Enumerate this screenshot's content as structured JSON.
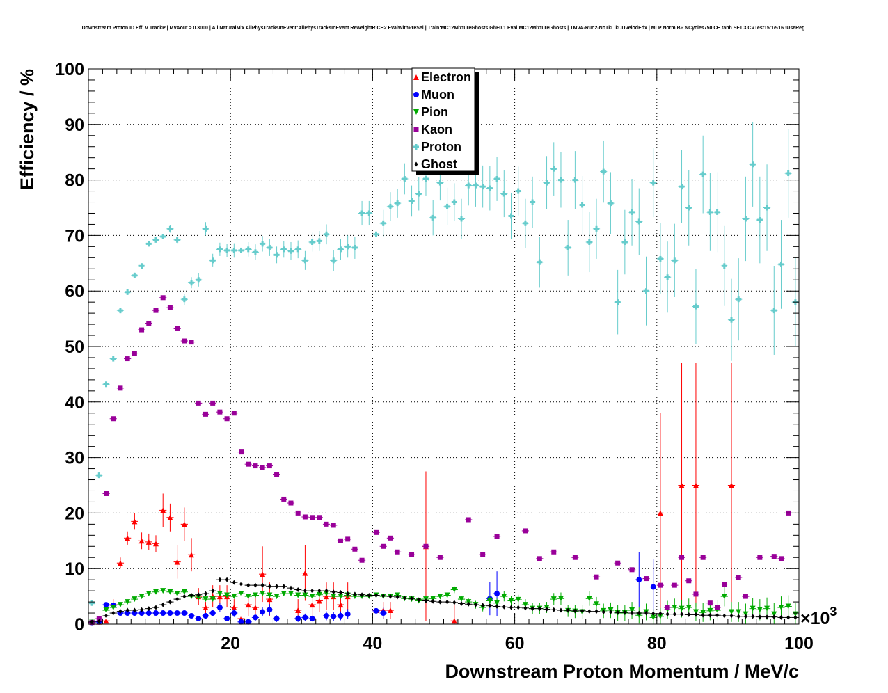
{
  "chart_data": {
    "type": "scatter",
    "title": "Downstream Proton ID Eff. V TrackP | MVAout > 0.3000 | All NaturalMix AllPhysTracksInEvent:AllPhysTracksInEvent ReweightRICH2 EvalWithPreSel | Train:MC12MixtureGhosts GhF0.1 Eval:MC12MixtureGhosts | TMVA-Run2-NoTkLikCDVelodEdx | MLP Norm BP NCycles750 CE tanh SF1.3 CVTest15:1e-16 !UseReg",
    "xlabel": "Downstream Proton Momentum / MeV/c",
    "ylabel": "Efficiency / %",
    "x_exponent_label": "×10",
    "x_exponent_power": "3",
    "xlim": [
      0,
      100
    ],
    "ylim": [
      0,
      100
    ],
    "x_ticks": [
      "20",
      "40",
      "60",
      "80",
      "100"
    ],
    "y_ticks": [
      "0",
      "10",
      "20",
      "30",
      "40",
      "50",
      "60",
      "70",
      "80",
      "90",
      "100"
    ],
    "grid": true,
    "legend_position": "top-center",
    "series": [
      {
        "name": "Electron",
        "color": "#ff0000",
        "marker": "triangle-up",
        "x": [
          2,
          3,
          4,
          5,
          6,
          7,
          8,
          9,
          10,
          11,
          12,
          13,
          14,
          15,
          16,
          17,
          18,
          19,
          20,
          21,
          22,
          23,
          24,
          25,
          26,
          30,
          31,
          32,
          33,
          34,
          35,
          36,
          37,
          41,
          42,
          43,
          48,
          52,
          81,
          84,
          86,
          91
        ],
        "y": [
          0.4,
          0.6,
          3.5,
          11,
          15.5,
          18.5,
          15,
          14.8,
          14.5,
          20.5,
          19.2,
          11.2,
          18,
          12.5,
          5,
          3,
          5,
          5,
          5,
          3,
          1,
          3.5,
          3,
          9,
          4.5,
          2.5,
          9.2,
          3.5,
          4.2,
          5,
          5,
          3.5,
          5,
          2.5,
          2.5,
          2.5,
          14,
          0.6,
          20,
          25,
          25,
          25
        ],
        "err": [
          0.3,
          0.4,
          1,
          1,
          1.2,
          1.5,
          1.5,
          1.5,
          1.5,
          3,
          2.5,
          3,
          3,
          3,
          1.5,
          1,
          2,
          2,
          2,
          1.5,
          1,
          2,
          2,
          5,
          3,
          2,
          5,
          2,
          2,
          2.5,
          2.5,
          2,
          2.5,
          1.5,
          1.5,
          1.5,
          13.5,
          3,
          18,
          22,
          22,
          22
        ]
      },
      {
        "name": "Muon",
        "color": "#0000ff",
        "marker": "circle",
        "x": [
          1,
          2,
          3,
          4,
          5,
          6,
          7,
          8,
          9,
          10,
          11,
          12,
          13,
          14,
          15,
          16,
          17,
          18,
          19,
          20,
          21,
          22,
          23,
          24,
          25,
          26,
          27,
          30,
          31,
          32,
          34,
          35,
          36,
          37,
          41,
          42,
          57,
          58,
          78,
          80
        ],
        "y": [
          0.3,
          0.4,
          3.5,
          3.4,
          2,
          2,
          2,
          2,
          2,
          2,
          2,
          2,
          2,
          2,
          1.5,
          1,
          1.5,
          2,
          3,
          1,
          2,
          0.4,
          0.4,
          1.2,
          2.2,
          2.6,
          1,
          1,
          1.2,
          1,
          1.5,
          1.4,
          1.5,
          1.8,
          2.4,
          2,
          4.6,
          5.5,
          8,
          6.7
        ],
        "err": [
          0.2,
          0.2,
          0.5,
          0.5,
          0.4,
          0.4,
          0.4,
          0.4,
          0.4,
          0.4,
          0.4,
          0.4,
          0.4,
          0.4,
          0.4,
          0.5,
          0.5,
          0.6,
          0.8,
          0.5,
          0.7,
          0.3,
          0.3,
          0.6,
          0.8,
          1,
          0.6,
          0.6,
          0.7,
          0.6,
          0.8,
          0.8,
          0.8,
          0.9,
          1,
          1,
          3,
          4,
          5,
          5
        ]
      },
      {
        "name": "Pion",
        "color": "#00aa00",
        "marker": "triangle-down",
        "x": [
          1,
          2,
          3,
          4,
          5,
          6,
          7,
          8,
          9,
          10,
          11,
          12,
          13,
          14,
          15,
          16,
          17,
          18,
          19,
          20,
          21,
          22,
          23,
          24,
          25,
          26,
          27,
          28,
          29,
          30,
          31,
          32,
          33,
          34,
          35,
          36,
          37,
          38,
          39,
          40,
          41,
          42,
          43,
          44,
          45,
          46,
          47,
          48,
          49,
          50,
          51,
          52,
          53,
          54,
          55,
          56,
          57,
          58,
          59,
          60,
          61,
          62,
          63,
          64,
          65,
          66,
          67,
          68,
          69,
          70,
          71,
          72,
          73,
          74,
          75,
          76,
          77,
          78,
          79,
          80,
          81,
          82,
          83,
          84,
          85,
          86,
          87,
          88,
          89,
          90,
          91,
          92,
          93,
          94,
          95,
          96,
          97,
          98,
          99,
          100
        ],
        "y": [
          0.3,
          0.5,
          2.5,
          3,
          3.5,
          4,
          4.5,
          5,
          5.5,
          5.8,
          6,
          5.8,
          5.5,
          5.8,
          5,
          4.8,
          4.5,
          4.5,
          5.5,
          5.2,
          5,
          5.5,
          5,
          5.2,
          5.5,
          5.2,
          5,
          5.5,
          5.5,
          5.2,
          5.2,
          5,
          5.3,
          5.5,
          5,
          5,
          5.2,
          5,
          5,
          5,
          5.2,
          5,
          5,
          5.2,
          4.6,
          4.5,
          4.2,
          4.5,
          4.6,
          5,
          5.2,
          6.2,
          4.5,
          4,
          3.5,
          3,
          4.2,
          3.8,
          5,
          4.2,
          4.4,
          3.5,
          2.8,
          2.8,
          3,
          4.5,
          4.6,
          2.4,
          2.3,
          2.2,
          4.6,
          3.6,
          2.4,
          2.5,
          2,
          2,
          2.5,
          1.6,
          2.2,
          1.2,
          1.4,
          2.6,
          3,
          2.8,
          3,
          2.2,
          2.1,
          2.4,
          2.5,
          5,
          2.2,
          2.2,
          1.8,
          2.8,
          2.6,
          2.8,
          1.8,
          3,
          3.2,
          1.8
        ],
        "err": [
          0.1,
          0.2,
          0.3,
          0.3,
          0.3,
          0.3,
          0.3,
          0.3,
          0.3,
          0.3,
          0.3,
          0.3,
          0.3,
          0.3,
          0.3,
          0.3,
          0.3,
          0.3,
          0.3,
          0.3,
          0.3,
          0.3,
          0.3,
          0.3,
          0.3,
          0.3,
          0.3,
          0.3,
          0.3,
          0.3,
          0.3,
          0.3,
          0.3,
          0.3,
          0.3,
          0.3,
          0.3,
          0.3,
          0.3,
          0.3,
          0.4,
          0.4,
          0.4,
          0.4,
          0.4,
          0.4,
          0.4,
          0.5,
          0.5,
          0.5,
          0.5,
          0.6,
          0.6,
          0.6,
          0.7,
          0.7,
          0.8,
          0.8,
          0.9,
          0.9,
          0.9,
          1,
          1,
          1,
          1,
          1.1,
          1.1,
          1.1,
          1.2,
          1.2,
          1.3,
          1.3,
          1.3,
          1.4,
          1.4,
          1.4,
          1.5,
          1.5,
          1.5,
          1.5,
          1.5,
          1.6,
          1.6,
          1.6,
          1.6,
          1.7,
          1.7,
          1.7,
          1.8,
          1.8,
          1.8,
          1.8,
          1.9,
          1.9,
          1.9,
          2,
          2,
          2,
          2,
          2
        ]
      },
      {
        "name": "Kaon",
        "color": "#990099",
        "marker": "square",
        "x": [
          1,
          2,
          3,
          4,
          5,
          6,
          7,
          8,
          9,
          10,
          11,
          12,
          13,
          14,
          15,
          16,
          17,
          18,
          19,
          20,
          21,
          22,
          23,
          24,
          25,
          26,
          27,
          28,
          29,
          30,
          31,
          32,
          33,
          34,
          35,
          36,
          37,
          38,
          39,
          41,
          42,
          43,
          44,
          46,
          48,
          50,
          54,
          56,
          58,
          62,
          64,
          66,
          69,
          72,
          75,
          77,
          79,
          81,
          82,
          83,
          84,
          85,
          86,
          87,
          88,
          89,
          90,
          92,
          93,
          95,
          97,
          98,
          99
        ],
        "y": [
          0.3,
          1,
          23.5,
          37,
          42.5,
          47.8,
          48.8,
          53,
          54.2,
          56.5,
          58.8,
          57,
          53.2,
          51,
          50.8,
          39.8,
          37.8,
          39.8,
          38.2,
          37,
          38,
          31,
          28.8,
          28.5,
          28.2,
          28.5,
          27,
          22.5,
          21.8,
          20,
          19.3,
          19.2,
          19.2,
          18,
          17.8,
          15,
          15.3,
          13.5,
          11.5,
          16.5,
          14,
          15.5,
          13,
          12.5,
          14,
          12,
          18.8,
          12.5,
          15.8,
          16.8,
          11.8,
          13,
          12,
          8.5,
          11,
          9.8,
          8.2,
          7,
          3,
          7,
          12,
          7.8,
          5.4,
          12,
          3.8,
          3,
          7.2,
          8.4,
          5,
          12,
          12.2,
          11.8,
          20
        ]
      },
      {
        "name": "Proton",
        "color": "#66cccc",
        "marker": "cross",
        "x": [
          1,
          2,
          3,
          4,
          5,
          6,
          7,
          8,
          9,
          10,
          11,
          12,
          13,
          14,
          15,
          16,
          17,
          18,
          19,
          20,
          21,
          22,
          23,
          24,
          25,
          26,
          27,
          28,
          29,
          30,
          31,
          32,
          33,
          34,
          35,
          36,
          37,
          38,
          39,
          40,
          41,
          42,
          43,
          44,
          45,
          46,
          47,
          48,
          49,
          50,
          51,
          52,
          53,
          54,
          55,
          56,
          57,
          58,
          59,
          60,
          61,
          62,
          63,
          64,
          65,
          66,
          67,
          68,
          69,
          70,
          71,
          72,
          73,
          74,
          75,
          76,
          77,
          78,
          79,
          80,
          81,
          82,
          83,
          84,
          85,
          86,
          87,
          88,
          89,
          90,
          91,
          92,
          93,
          94,
          95,
          96,
          97,
          98,
          99,
          100
        ],
        "y": [
          3.8,
          26.8,
          43.2,
          47.8,
          56.5,
          59.8,
          62.8,
          64.5,
          68.5,
          69.2,
          69.8,
          71.2,
          69.2,
          58.5,
          61.5,
          62,
          71.2,
          65.5,
          67.5,
          67.3,
          67.3,
          67.3,
          67.5,
          67,
          68.5,
          67.8,
          66.5,
          67.5,
          67.2,
          67.5,
          65.5,
          68.8,
          69,
          70.2,
          65.5,
          67.5,
          68,
          67.8,
          74,
          74,
          70.2,
          72.2,
          75.2,
          75.8,
          80.2,
          76.2,
          77.5,
          80.2,
          73.2,
          79.5,
          75.2,
          76,
          73,
          79,
          79,
          78.8,
          78.5,
          80.2,
          77.5,
          73.5,
          78,
          72.2,
          76,
          65.2,
          79.5,
          82,
          80,
          67.8,
          80,
          75.5,
          68.8,
          71.2,
          81.5,
          75.8,
          58,
          68.8,
          74.2,
          72.5,
          60,
          79.5,
          65.8,
          62.5,
          65.5,
          78.8,
          75,
          57.2,
          81,
          74.2,
          74.2,
          64.5,
          54.8,
          58.5,
          73,
          82.8,
          72.8,
          75,
          56.5,
          64.8,
          81.2,
          58
        ],
        "err": [
          0.5,
          0.5,
          0.5,
          0.5,
          0.5,
          0.5,
          0.5,
          0.5,
          0.5,
          0.5,
          0.5,
          0.7,
          0.7,
          1,
          1,
          1.2,
          1.2,
          1.2,
          1.2,
          1.2,
          1.3,
          1.3,
          1.3,
          1.4,
          1.4,
          1.5,
          1.5,
          1.5,
          1.6,
          1.6,
          1.7,
          1.7,
          1.8,
          1.8,
          1.9,
          1.9,
          2,
          2,
          2.2,
          2.2,
          2.4,
          2.4,
          2.6,
          2.6,
          2.8,
          2.8,
          3,
          3,
          3.2,
          3.2,
          3.4,
          3.4,
          3.6,
          3.6,
          3.8,
          3.8,
          4,
          4,
          4.2,
          4.2,
          4.4,
          4.4,
          4.6,
          4.6,
          4.8,
          4.8,
          5,
          5,
          5.2,
          5.2,
          5.4,
          5.4,
          5.6,
          5.6,
          5.8,
          5.8,
          6,
          6,
          6.2,
          6.2,
          6.4,
          6.4,
          6.6,
          6.6,
          6.8,
          6.8,
          7,
          7,
          7.2,
          7.2,
          7.4,
          7.4,
          7.6,
          7.6,
          7.8,
          7.8,
          8,
          8,
          8,
          8
        ]
      },
      {
        "name": "Ghost",
        "color": "#000000",
        "marker": "diamond",
        "x": [
          1,
          2,
          3,
          4,
          5,
          6,
          7,
          8,
          9,
          10,
          11,
          12,
          13,
          14,
          15,
          16,
          17,
          18,
          19,
          20,
          21,
          22,
          23,
          24,
          25,
          26,
          27,
          28,
          29,
          30,
          31,
          32,
          33,
          34,
          35,
          36,
          37,
          38,
          39,
          40,
          41,
          42,
          43,
          44,
          45,
          46,
          47,
          48,
          49,
          50,
          51,
          52,
          53,
          54,
          55,
          56,
          57,
          58,
          59,
          60,
          61,
          62,
          63,
          64,
          65,
          66,
          67,
          68,
          69,
          70,
          71,
          72,
          73,
          74,
          75,
          76,
          77,
          78,
          79,
          80,
          81,
          82,
          83,
          84,
          85,
          86,
          87,
          88,
          89,
          90,
          91,
          92,
          93,
          94,
          95,
          96,
          97,
          98,
          99,
          100
        ],
        "y": [
          0.4,
          0.5,
          1.5,
          2,
          2.3,
          2.5,
          2.5,
          2.6,
          2.8,
          3,
          3.5,
          4,
          4.5,
          5,
          5.2,
          5.3,
          5.5,
          6,
          8,
          8,
          7.5,
          7.2,
          7,
          7,
          7,
          6.8,
          6.8,
          6.8,
          6.5,
          6.2,
          6,
          6,
          6,
          6,
          5.8,
          5.7,
          5.5,
          5.4,
          5.3,
          5.2,
          5.2,
          5.1,
          5,
          4.9,
          4.7,
          4.6,
          4.4,
          4.2,
          4.1,
          4,
          4,
          3.9,
          3.7,
          3.6,
          3.5,
          3.4,
          3.3,
          3.2,
          3.1,
          3,
          3,
          2.9,
          2.8,
          2.8,
          2.7,
          2.6,
          2.5,
          2.5,
          2.4,
          2.4,
          2.3,
          2.3,
          2.2,
          2.2,
          2.1,
          2.1,
          2,
          2,
          2,
          1.9,
          1.9,
          1.8,
          1.8,
          1.8,
          1.7,
          1.7,
          1.6,
          1.6,
          1.6,
          1.5,
          1.5,
          1.4,
          1.4,
          1.4,
          1.3,
          1.3,
          1.3,
          1.2,
          1.2,
          1.2
        ]
      }
    ]
  }
}
